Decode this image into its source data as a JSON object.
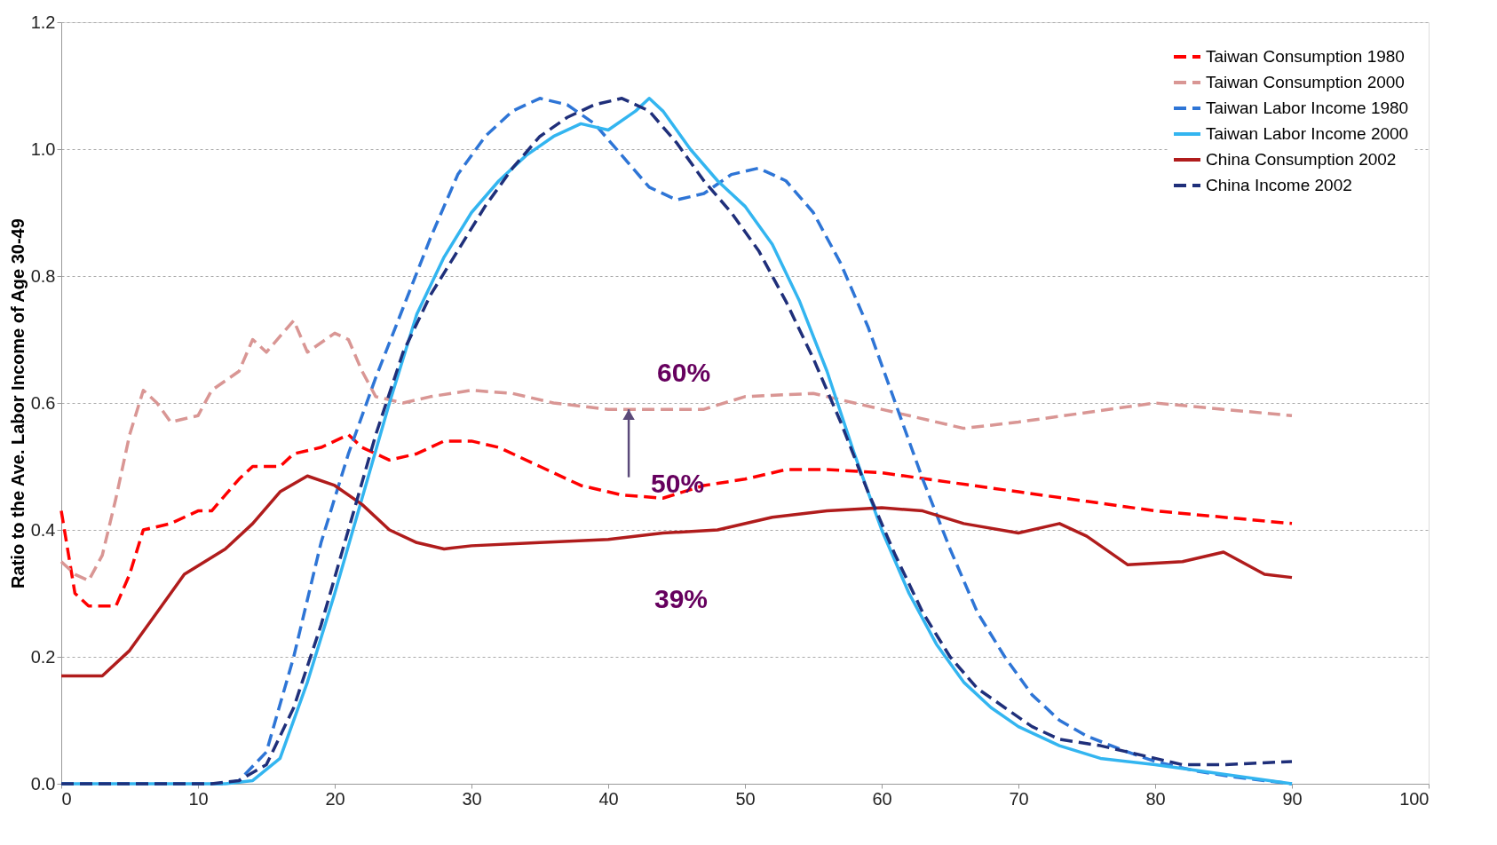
{
  "chart_data": {
    "type": "line",
    "ylabel": "Ratio to the Ave. Labor Income of Age 30-49",
    "xlim": [
      0,
      100
    ],
    "xticks": [
      0,
      10,
      20,
      30,
      40,
      50,
      60,
      70,
      80,
      90,
      100
    ],
    "ylim": [
      0,
      1.2
    ],
    "yticks": [
      {
        "value": 0,
        "label": "0.0"
      },
      {
        "value": 0.2,
        "label": "0.2"
      },
      {
        "value": 0.4,
        "label": "0.4"
      },
      {
        "value": 0.6,
        "label": "0.6"
      },
      {
        "value": 0.8,
        "label": "0.8"
      },
      {
        "value": 1.0,
        "label": "1.0"
      },
      {
        "value": 1.2,
        "label": "1.2"
      }
    ],
    "grid": "y",
    "legend": "top right",
    "marker": "none",
    "series": [
      {
        "name": "Taiwan Consumption 1980",
        "color": "#ff0000",
        "line_style": "dashed",
        "x": [
          0,
          1,
          2,
          4,
          5,
          6,
          8,
          10,
          11,
          13,
          14,
          16,
          17,
          19,
          21,
          22,
          24,
          26,
          28,
          30,
          32,
          35,
          38,
          41,
          44,
          47,
          50,
          53,
          56,
          60,
          65,
          70,
          75,
          80,
          85,
          90
        ],
        "values": [
          0.43,
          0.3,
          0.28,
          0.28,
          0.33,
          0.4,
          0.41,
          0.43,
          0.43,
          0.48,
          0.5,
          0.5,
          0.52,
          0.53,
          0.55,
          0.53,
          0.51,
          0.52,
          0.54,
          0.54,
          0.53,
          0.5,
          0.47,
          0.455,
          0.45,
          0.47,
          0.48,
          0.495,
          0.495,
          0.49,
          0.475,
          0.46,
          0.445,
          0.43,
          0.42,
          0.41
        ]
      },
      {
        "name": "Taiwan Consumption 2000",
        "color": "#d99694",
        "line_style": "dashed",
        "x": [
          0,
          1,
          2,
          3,
          4,
          5,
          6,
          7,
          8,
          10,
          11,
          13,
          14,
          15,
          17,
          18,
          20,
          21,
          22,
          23,
          25,
          27,
          30,
          33,
          36,
          40,
          44,
          47,
          50,
          55,
          58,
          62,
          66,
          70,
          75,
          80,
          85,
          90
        ],
        "values": [
          0.35,
          0.33,
          0.32,
          0.36,
          0.45,
          0.55,
          0.62,
          0.6,
          0.57,
          0.58,
          0.62,
          0.65,
          0.7,
          0.68,
          0.73,
          0.68,
          0.71,
          0.7,
          0.65,
          0.61,
          0.6,
          0.61,
          0.62,
          0.615,
          0.6,
          0.59,
          0.59,
          0.59,
          0.61,
          0.615,
          0.6,
          0.58,
          0.56,
          0.57,
          0.585,
          0.6,
          0.59,
          0.58
        ]
      },
      {
        "name": "Taiwan Labor Income 1980",
        "color": "#2e75d6",
        "line_style": "dashed",
        "x": [
          0,
          12,
          13,
          15,
          17,
          19,
          21,
          23,
          25,
          27,
          29,
          31,
          33,
          35,
          37,
          39,
          41,
          43,
          45,
          47,
          49,
          51,
          53,
          55,
          57,
          59,
          61,
          63,
          65,
          67,
          69,
          71,
          73,
          75,
          78,
          80,
          83,
          86,
          88,
          90
        ],
        "values": [
          0,
          0,
          0.005,
          0.05,
          0.2,
          0.38,
          0.52,
          0.64,
          0.75,
          0.86,
          0.96,
          1.02,
          1.06,
          1.08,
          1.07,
          1.04,
          0.99,
          0.94,
          0.92,
          0.93,
          0.96,
          0.97,
          0.95,
          0.9,
          0.82,
          0.72,
          0.6,
          0.48,
          0.37,
          0.27,
          0.2,
          0.14,
          0.1,
          0.075,
          0.05,
          0.035,
          0.02,
          0.01,
          0.005,
          0
        ]
      },
      {
        "name": "Taiwan Labor Income 2000",
        "color": "#33b5f0",
        "line_style": "solid",
        "x": [
          0,
          12,
          14,
          16,
          18,
          20,
          22,
          24,
          26,
          28,
          30,
          32,
          34,
          36,
          38,
          40,
          42,
          43,
          44,
          46,
          48,
          50,
          52,
          54,
          56,
          58,
          60,
          62,
          64,
          66,
          68,
          70,
          73,
          76,
          80,
          85,
          90
        ],
        "values": [
          0,
          0,
          0.005,
          0.04,
          0.16,
          0.3,
          0.45,
          0.6,
          0.74,
          0.83,
          0.9,
          0.95,
          0.99,
          1.02,
          1.04,
          1.03,
          1.06,
          1.08,
          1.06,
          1.0,
          0.95,
          0.91,
          0.85,
          0.76,
          0.65,
          0.52,
          0.4,
          0.3,
          0.22,
          0.16,
          0.12,
          0.09,
          0.06,
          0.04,
          0.03,
          0.015,
          0
        ]
      },
      {
        "name": "China Consumption 2002",
        "color": "#b01c1c",
        "line_style": "solid",
        "x": [
          0,
          3,
          5,
          7,
          9,
          12,
          14,
          16,
          18,
          20,
          22,
          24,
          26,
          28,
          30,
          35,
          40,
          44,
          48,
          52,
          56,
          60,
          63,
          66,
          70,
          73,
          75,
          78,
          82,
          85,
          88,
          90
        ],
        "values": [
          0.17,
          0.17,
          0.21,
          0.27,
          0.33,
          0.37,
          0.41,
          0.46,
          0.485,
          0.47,
          0.44,
          0.4,
          0.38,
          0.37,
          0.375,
          0.38,
          0.385,
          0.395,
          0.4,
          0.42,
          0.43,
          0.435,
          0.43,
          0.41,
          0.395,
          0.41,
          0.39,
          0.345,
          0.35,
          0.365,
          0.33,
          0.325
        ]
      },
      {
        "name": "China Income 2002",
        "color": "#1f2f7a",
        "line_style": "dashed",
        "x": [
          0,
          11,
          13,
          15,
          17,
          19,
          21,
          23,
          25,
          27,
          29,
          31,
          33,
          35,
          37,
          39,
          41,
          43,
          45,
          47,
          49,
          51,
          53,
          55,
          57,
          59,
          61,
          63,
          65,
          67,
          69,
          71,
          73,
          76,
          80,
          82,
          85,
          90
        ],
        "values": [
          0,
          0,
          0.005,
          0.03,
          0.12,
          0.25,
          0.4,
          0.55,
          0.68,
          0.77,
          0.84,
          0.91,
          0.97,
          1.02,
          1.05,
          1.07,
          1.08,
          1.06,
          1.01,
          0.95,
          0.9,
          0.84,
          0.76,
          0.67,
          0.57,
          0.46,
          0.36,
          0.27,
          0.2,
          0.15,
          0.12,
          0.09,
          0.07,
          0.06,
          0.04,
          0.03,
          0.03,
          0.035
        ]
      }
    ],
    "annotations": [
      {
        "text": "60%",
        "x": 41.5,
        "y": 0.59
      },
      {
        "text": "50%",
        "x": 41.5,
        "y": 0.455
      },
      "39%"
    ]
  }
}
